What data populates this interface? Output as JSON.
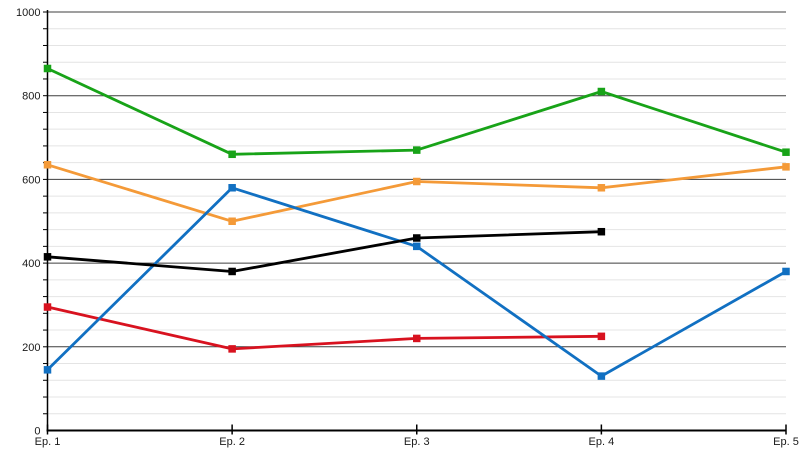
{
  "page": {
    "title": "",
    "background": "#ffffff"
  },
  "colors": {
    "background": "#ffffff",
    "axis": "#000000",
    "major_grid": "#3f3f3f",
    "minor_grid": "#e4e4e4",
    "label": "#1a1a1a"
  },
  "chart_data": {
    "type": "line",
    "title": "",
    "subtitle": "",
    "xlabel": "",
    "ylabel": "",
    "categories": [
      "Ep. 1",
      "Ep. 2",
      "Ep. 3",
      "Ep. 4",
      "Ep. 5"
    ],
    "series": [
      {
        "name": "red",
        "color": "#d8121f",
        "marker": "square",
        "values": [
          295,
          195,
          220,
          225,
          null
        ]
      },
      {
        "name": "orange",
        "color": "#f49a38",
        "marker": "square",
        "values": [
          635,
          500,
          595,
          580,
          630
        ]
      },
      {
        "name": "blue",
        "color": "#1170c2",
        "marker": "square",
        "values": [
          145,
          580,
          440,
          130,
          380
        ]
      },
      {
        "name": "black",
        "color": "#000000",
        "marker": "square",
        "values": [
          415,
          380,
          460,
          475,
          null
        ]
      },
      {
        "name": "green",
        "color": "#18a318",
        "marker": "square",
        "values": [
          865,
          660,
          670,
          810,
          665
        ]
      }
    ],
    "ylim": [
      0,
      1000
    ],
    "y_major_step": 200,
    "y_minor_step": 40,
    "y_ticks": [
      0,
      200,
      400,
      600,
      800,
      1000
    ],
    "y_tick_labels": [
      "0",
      "200",
      "400",
      "600",
      "800",
      "1000"
    ],
    "grid": true,
    "legend": "none"
  }
}
